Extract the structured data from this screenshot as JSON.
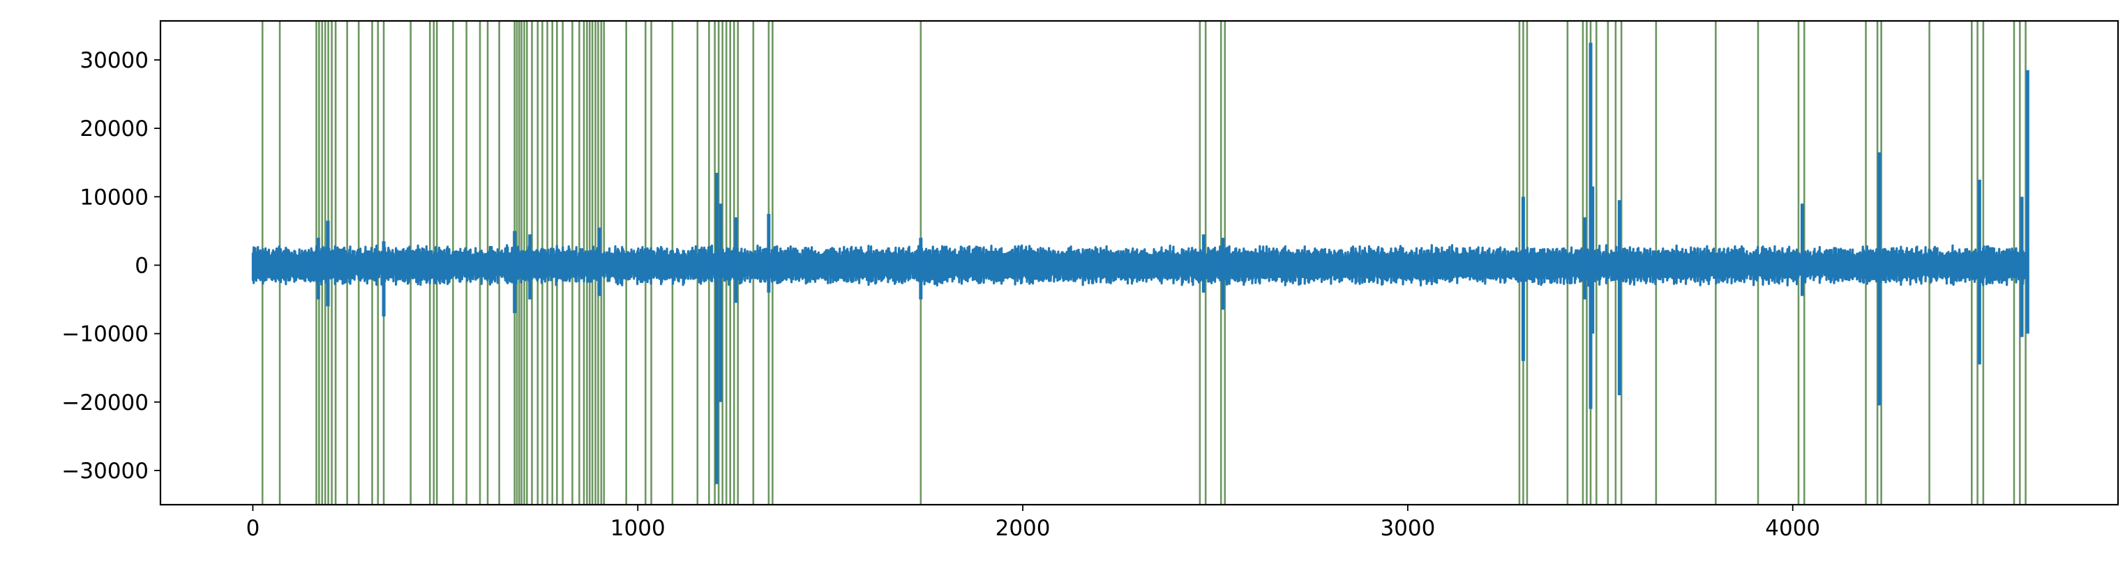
{
  "chart_data": {
    "type": "line",
    "title": "",
    "xlabel": "",
    "ylabel": "",
    "xlim": [
      -240,
      4845
    ],
    "ylim": [
      -35000,
      35700
    ],
    "x_ticks": [
      0,
      1000,
      2000,
      3000,
      4000
    ],
    "x_tick_labels": [
      "0",
      "1000",
      "2000",
      "3000",
      "4000"
    ],
    "y_ticks": [
      -30000,
      -20000,
      -10000,
      0,
      10000,
      20000,
      30000
    ],
    "y_tick_labels": [
      "−30000",
      "−20000",
      "−10000",
      "0",
      "10000",
      "20000",
      "30000"
    ],
    "grid": false,
    "series": [
      {
        "kind": "signal",
        "color": "#1f77b4",
        "x_range": [
          0,
          4610
        ],
        "baseline_amplitude": 3000,
        "spikes": [
          {
            "x": 170,
            "min": -5000,
            "max": 4000
          },
          {
            "x": 195,
            "min": -6000,
            "max": 6500
          },
          {
            "x": 340,
            "min": -7500,
            "max": 3500
          },
          {
            "x": 680,
            "min": -7000,
            "max": 5000
          },
          {
            "x": 720,
            "min": -5000,
            "max": 4500
          },
          {
            "x": 900,
            "min": -4500,
            "max": 5500
          },
          {
            "x": 1205,
            "min": -32000,
            "max": 13500
          },
          {
            "x": 1215,
            "min": -20000,
            "max": 9000
          },
          {
            "x": 1255,
            "min": -5500,
            "max": 7000
          },
          {
            "x": 1340,
            "min": -4000,
            "max": 7500
          },
          {
            "x": 1735,
            "min": -5000,
            "max": 4000
          },
          {
            "x": 2470,
            "min": -4000,
            "max": 4500
          },
          {
            "x": 2520,
            "min": -6500,
            "max": 4000
          },
          {
            "x": 3300,
            "min": -14000,
            "max": 10000
          },
          {
            "x": 3460,
            "min": -5000,
            "max": 7000
          },
          {
            "x": 3475,
            "min": -21000,
            "max": 32500
          },
          {
            "x": 3480,
            "min": -10000,
            "max": 11500
          },
          {
            "x": 3550,
            "min": -19000,
            "max": 9500
          },
          {
            "x": 4025,
            "min": -4500,
            "max": 9000
          },
          {
            "x": 4225,
            "min": -20500,
            "max": 16500
          },
          {
            "x": 4485,
            "min": -14500,
            "max": 12500
          },
          {
            "x": 4595,
            "min": -10500,
            "max": 10000
          },
          {
            "x": 4610,
            "min": -10000,
            "max": 28500
          }
        ]
      },
      {
        "kind": "event_markers",
        "color": "#2e6b1e",
        "x": [
          25,
          70,
          165,
          172,
          180,
          188,
          196,
          205,
          215,
          245,
          275,
          310,
          325,
          340,
          410,
          460,
          470,
          478,
          520,
          555,
          590,
          610,
          640,
          680,
          686,
          692,
          698,
          705,
          712,
          725,
          740,
          752,
          765,
          778,
          790,
          805,
          830,
          848,
          860,
          868,
          875,
          882,
          890,
          897,
          905,
          912,
          970,
          1020,
          1035,
          1090,
          1155,
          1185,
          1200,
          1210,
          1220,
          1230,
          1240,
          1250,
          1260,
          1300,
          1340,
          1350,
          1735,
          2460,
          2475,
          2515,
          2525,
          3290,
          3300,
          3310,
          3415,
          3455,
          3465,
          3475,
          3490,
          3520,
          3540,
          3555,
          3645,
          3800,
          3910,
          4015,
          4030,
          4190,
          4220,
          4230,
          4355,
          4465,
          4480,
          4495,
          4575,
          4590,
          4605
        ]
      }
    ]
  }
}
